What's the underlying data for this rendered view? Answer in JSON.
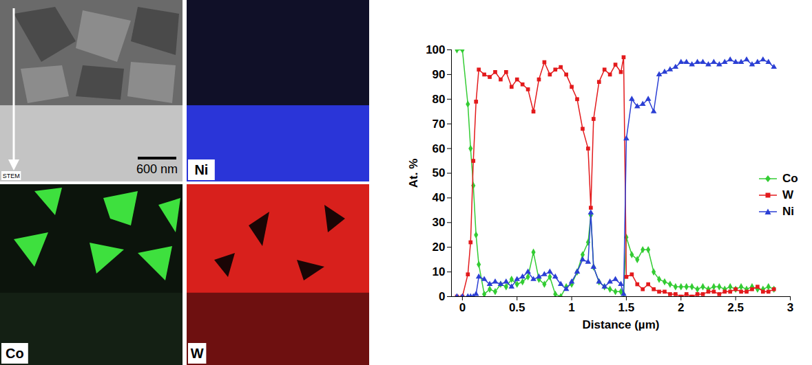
{
  "chart_data": {
    "type": "line",
    "x_label": "Distance (µm)",
    "y_label": "At. %",
    "x": [
      -0.05,
      0,
      0.05,
      0.075,
      0.1,
      0.125,
      0.15,
      0.2,
      0.25,
      0.3,
      0.35,
      0.4,
      0.45,
      0.5,
      0.55,
      0.6,
      0.65,
      0.7,
      0.75,
      0.8,
      0.85,
      0.9,
      0.95,
      1.0,
      1.05,
      1.1,
      1.15,
      1.175,
      1.2,
      1.25,
      1.3,
      1.35,
      1.4,
      1.45,
      1.475,
      1.5,
      1.55,
      1.6,
      1.65,
      1.7,
      1.75,
      1.8,
      1.85,
      1.9,
      1.95,
      2.0,
      2.05,
      2.1,
      2.15,
      2.2,
      2.25,
      2.3,
      2.35,
      2.4,
      2.45,
      2.5,
      2.55,
      2.6,
      2.65,
      2.7,
      2.75,
      2.8,
      2.85
    ],
    "series": [
      {
        "name": "Co",
        "color": "#33cc33",
        "marker": "diamond",
        "values": [
          100,
          100,
          78,
          60,
          45,
          25,
          13,
          1,
          3,
          2,
          5,
          4,
          7,
          5,
          6,
          8,
          18,
          7,
          5,
          8,
          1,
          0,
          4,
          5,
          10,
          17,
          22,
          33,
          12,
          6,
          4,
          3,
          2,
          2,
          1,
          24,
          17,
          15,
          19,
          19,
          10,
          7,
          6,
          5,
          4,
          4,
          4,
          4,
          3,
          4,
          3,
          4,
          4,
          3,
          4,
          3,
          4,
          3,
          4,
          3,
          3,
          4,
          3
        ]
      },
      {
        "name": "W",
        "color": "#e31a1c",
        "marker": "square",
        "values": [
          0,
          0,
          9,
          22,
          55,
          79,
          92,
          90,
          89,
          91,
          88,
          91,
          85,
          88,
          86,
          84,
          75,
          88,
          95,
          90,
          92,
          93,
          90,
          85,
          80,
          68,
          60,
          36,
          72,
          87,
          92,
          90,
          94,
          91,
          97,
          8,
          9,
          5,
          3,
          5,
          3,
          2,
          2,
          1,
          1,
          0,
          1,
          0,
          1,
          1,
          2,
          2,
          1,
          2,
          2,
          3,
          2,
          2,
          3,
          4,
          2,
          2,
          3
        ]
      },
      {
        "name": "Ni",
        "color": "#2b3fd4",
        "marker": "triangle",
        "values": [
          0,
          0,
          0,
          0,
          0,
          1,
          8,
          7,
          5,
          6,
          5,
          6,
          4,
          7,
          8,
          10,
          7,
          8,
          9,
          10,
          8,
          5,
          3,
          6,
          10,
          15,
          14,
          34,
          12,
          6,
          4,
          6,
          7,
          5,
          1,
          64,
          80,
          77,
          78,
          80,
          75,
          90,
          91,
          92,
          93,
          95,
          95,
          94,
          95,
          95,
          94,
          95,
          94,
          95,
          96,
          95,
          95,
          96,
          94,
          95,
          96,
          95,
          93
        ]
      }
    ],
    "xlim": [
      -0.1,
      3
    ],
    "xticks": [
      0,
      0.5,
      1,
      1.5,
      2,
      2.5,
      3
    ],
    "ylim": [
      0,
      100
    ],
    "yticks": [
      0,
      10,
      20,
      30,
      40,
      50,
      60,
      70,
      80,
      90,
      100
    ],
    "grid": false,
    "legend": "right"
  },
  "image_panels": [
    {
      "label": "STEM",
      "scale_bar": "600 nm"
    },
    {
      "label": "Ni"
    },
    {
      "label": "Co"
    },
    {
      "label": "W"
    }
  ]
}
